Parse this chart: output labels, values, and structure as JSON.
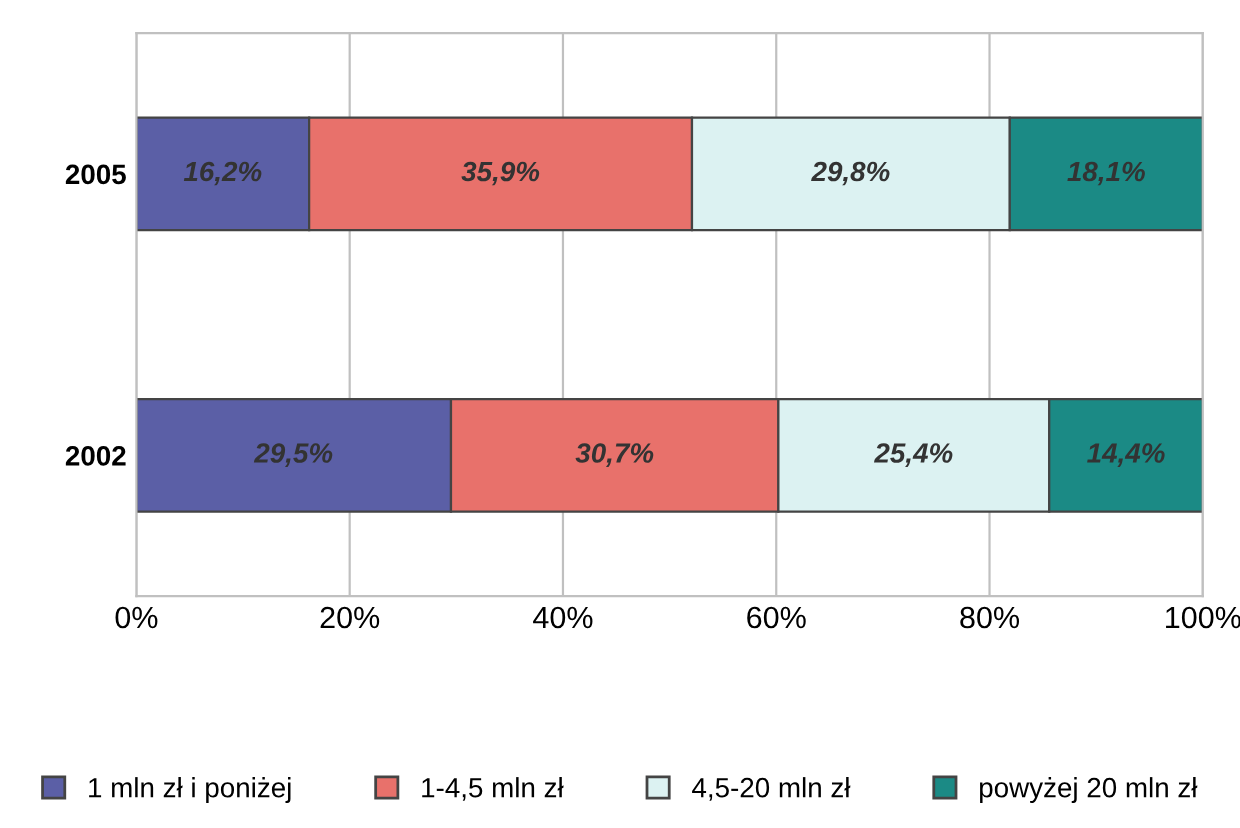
{
  "chart_data": {
    "type": "bar",
    "orientation": "horizontal",
    "stacked": true,
    "categories": [
      "2005",
      "2002"
    ],
    "series": [
      {
        "name": "1 mln zł i poniżej",
        "color": "#5b5fa6",
        "values": [
          16.2,
          29.5
        ],
        "value_labels": [
          "16,2%",
          "29,5%"
        ]
      },
      {
        "name": "1-4,5 mln zł",
        "color": "#e8716b",
        "values": [
          35.9,
          30.7
        ],
        "value_labels": [
          "35,9%",
          "30,7%"
        ]
      },
      {
        "name": "4,5-20 mln zł",
        "color": "#dcf2f2",
        "values": [
          29.8,
          25.4
        ],
        "value_labels": [
          "29,8%",
          "25,4%"
        ]
      },
      {
        "name": "powyżej 20 mln zł",
        "color": "#1b8a85",
        "values": [
          18.1,
          14.4
        ],
        "value_labels": [
          "18,1%",
          "14,4%"
        ]
      }
    ],
    "xlim": [
      0,
      100
    ],
    "xticks": [
      {
        "value": 0,
        "label": "0%"
      },
      {
        "value": 20,
        "label": "20%"
      },
      {
        "value": 40,
        "label": "40%"
      },
      {
        "value": 60,
        "label": "60%"
      },
      {
        "value": 80,
        "label": "80%"
      },
      {
        "value": 100,
        "label": "100%"
      }
    ],
    "grid": "x",
    "legend": "bottom"
  }
}
